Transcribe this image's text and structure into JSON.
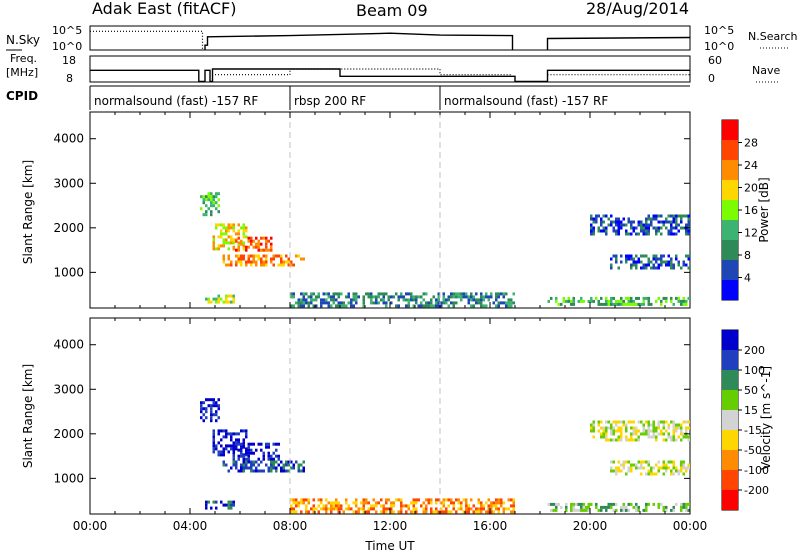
{
  "header": {
    "station": "Adak East (fitACF)",
    "beam": "Beam 09",
    "date": "28/Aug/2014"
  },
  "colors": {
    "power": [
      "#0000ff",
      "#1e46b4",
      "#2e8b57",
      "#3cb371",
      "#7cfc00",
      "#ffd700",
      "#ff8c00",
      "#ff4500",
      "#ff0000"
    ],
    "velocity": [
      "#0000cd",
      "#1f3fbf",
      "#2e8b57",
      "#66cd00",
      "#d3d3d3",
      "#ffd700",
      "#ff8c00",
      "#ff4500",
      "#ff0000"
    ],
    "dashed_line": "#c0c0c0"
  },
  "chart_data": [
    {
      "type": "line",
      "panel": "noise",
      "left_label": "N.Sky",
      "left_ticks": [
        "10^5",
        "10^0"
      ],
      "right_label": "N.Search",
      "right_ticks": [
        "10^5",
        "10^0"
      ],
      "x_range_hours": [
        0,
        24
      ],
      "series": [
        {
          "style": "dotted",
          "points": [
            [
              0,
              0.78
            ],
            [
              4.5,
              0.78
            ],
            [
              4.5,
              0.02
            ]
          ]
        },
        {
          "style": "solid",
          "points": [
            [
              4.6,
              0.02
            ],
            [
              4.6,
              0.2
            ],
            [
              4.7,
              0.2
            ],
            [
              4.7,
              0.55
            ],
            [
              8.0,
              0.6
            ],
            [
              10.0,
              0.65
            ],
            [
              12.0,
              0.7
            ],
            [
              14.0,
              0.62
            ],
            [
              16.9,
              0.6
            ],
            [
              16.9,
              0.02
            ]
          ]
        },
        {
          "style": "solid",
          "points": [
            [
              18.3,
              0.02
            ],
            [
              18.3,
              0.48
            ],
            [
              24.0,
              0.52
            ]
          ]
        }
      ]
    },
    {
      "type": "line",
      "panel": "frequency",
      "left_label": "Freq.",
      "left_unit": "[MHz]",
      "left_ticks": [
        "18",
        "8"
      ],
      "right_label": "Nave",
      "right_ticks": [
        "60",
        "0"
      ],
      "x_range_hours": [
        0,
        24
      ],
      "series": [
        {
          "style": "solid",
          "points": [
            [
              0,
              0.45
            ],
            [
              4.35,
              0.45
            ],
            [
              4.35,
              0.02
            ],
            [
              4.6,
              0.02
            ],
            [
              4.6,
              0.45
            ],
            [
              4.8,
              0.45
            ],
            [
              4.8,
              0.02
            ],
            [
              4.9,
              0.02
            ],
            [
              4.9,
              0.5
            ],
            [
              8.0,
              0.5
            ],
            [
              8.0,
              0.5
            ],
            [
              10.0,
              0.5
            ],
            [
              10.0,
              0.22
            ],
            [
              17.0,
              0.22
            ],
            [
              17.0,
              0.02
            ],
            [
              18.3,
              0.02
            ],
            [
              18.3,
              0.45
            ],
            [
              24,
              0.45
            ]
          ]
        },
        {
          "style": "dotted",
          "points": [
            [
              5.0,
              0.28
            ],
            [
              8.0,
              0.28
            ],
            [
              8.0,
              0.5
            ],
            [
              14.0,
              0.5
            ],
            [
              14.0,
              0.28
            ],
            [
              16.9,
              0.28
            ]
          ]
        },
        {
          "style": "dotted",
          "points": [
            [
              18.3,
              0.28
            ],
            [
              24,
              0.28
            ]
          ]
        }
      ]
    },
    {
      "type": "table",
      "panel": "cpid",
      "label": "CPID",
      "segments": [
        {
          "start": 0,
          "end": 8,
          "name": "normalsound (fast) -157 RF"
        },
        {
          "start": 8,
          "end": 14,
          "name": "rbsp 200 RF"
        },
        {
          "start": 14,
          "end": 24,
          "name": "normalsound (fast) -157 RF"
        }
      ]
    },
    {
      "type": "heatmap",
      "panel": "power",
      "ylabel": "Slant Range [km]",
      "yticks": [
        1000,
        2000,
        3000,
        4000
      ],
      "ylim": [
        200,
        4600
      ],
      "colorbar_label": "Power [dB]",
      "colorbar_ticks": [
        "4",
        "8",
        "12",
        "16",
        "20",
        "24",
        "28"
      ],
      "regions": [
        {
          "t0": 4.4,
          "t1": 5.2,
          "r0": 2300,
          "r1": 2800,
          "level": 3
        },
        {
          "t0": 4.9,
          "t1": 6.3,
          "r0": 1500,
          "r1": 2100,
          "level": 5
        },
        {
          "t0": 5.7,
          "t1": 7.3,
          "r0": 1500,
          "r1": 1800,
          "level": 7
        },
        {
          "t0": 5.3,
          "t1": 8.6,
          "r0": 1150,
          "r1": 1400,
          "level": 6
        },
        {
          "t0": 4.6,
          "t1": 5.8,
          "r0": 350,
          "r1": 500,
          "level": 4
        },
        {
          "t0": 8.0,
          "t1": 17.0,
          "r0": 250,
          "r1": 550,
          "level": 2
        },
        {
          "t0": 18.2,
          "t1": 24.0,
          "r0": 250,
          "r1": 450,
          "level": 3
        },
        {
          "t0": 20.0,
          "t1": 24.0,
          "r0": 1850,
          "r1": 2300,
          "level": 1
        },
        {
          "t0": 20.8,
          "t1": 24.0,
          "r0": 1100,
          "r1": 1400,
          "level": 1
        }
      ]
    },
    {
      "type": "heatmap",
      "panel": "velocity",
      "ylabel": "Slant Range [km]",
      "yticks": [
        1000,
        2000,
        3000,
        4000
      ],
      "ylim": [
        200,
        4600
      ],
      "xlabel": "Time UT",
      "xticks": [
        "00:00",
        "04:00",
        "08:00",
        "12:00",
        "16:00",
        "20:00",
        "00:00"
      ],
      "colorbar_label": "Velocity [m s^-1]",
      "colorbar_ticks": [
        "200",
        "100",
        "50",
        "15",
        "-15",
        "-50",
        "-100",
        "-200"
      ],
      "regions": [
        {
          "t0": 4.4,
          "t1": 5.2,
          "r0": 2300,
          "r1": 2800,
          "level": 0
        },
        {
          "t0": 4.9,
          "t1": 6.3,
          "r0": 1500,
          "r1": 2100,
          "level": 0
        },
        {
          "t0": 5.7,
          "t1": 7.6,
          "r0": 1400,
          "r1": 1800,
          "level": 0
        },
        {
          "t0": 5.3,
          "t1": 8.6,
          "r0": 1150,
          "r1": 1400,
          "level": 1
        },
        {
          "t0": 4.6,
          "t1": 5.8,
          "r0": 350,
          "r1": 500,
          "level": 1
        },
        {
          "t0": 8.0,
          "t1": 17.0,
          "r0": 250,
          "r1": 550,
          "level": 6
        },
        {
          "t0": 18.2,
          "t1": 24.0,
          "r0": 250,
          "r1": 450,
          "level": 3
        },
        {
          "t0": 20.0,
          "t1": 24.0,
          "r0": 1850,
          "r1": 2300,
          "level": 4
        },
        {
          "t0": 20.8,
          "t1": 24.0,
          "r0": 1100,
          "r1": 1400,
          "level": 4
        }
      ]
    }
  ]
}
